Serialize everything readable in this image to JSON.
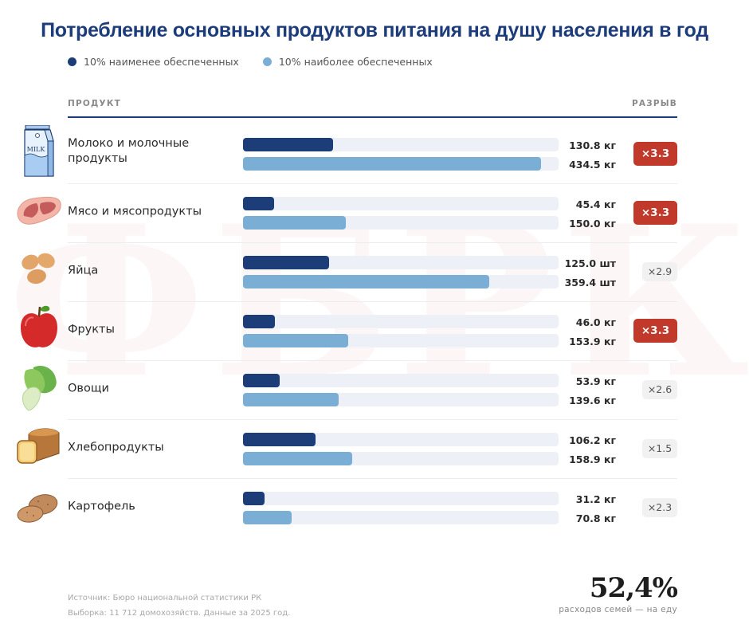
{
  "watermark": "ФБРК",
  "title": "Потребление основных продуктов питания на душу населения в год",
  "legend": [
    {
      "label": "10% наименее обеспеченных",
      "color": "#1d3d79"
    },
    {
      "label": "10% наиболее обеспеченных",
      "color": "#7aaed4"
    }
  ],
  "table_header": {
    "product": "ПРОДУКТ",
    "gap": "РАЗРЫВ"
  },
  "colors": {
    "low": "#1d3d79",
    "high": "#7aaed4",
    "badge_hot": "#c0392b",
    "badge_norm": "#f1f1f2",
    "title": "#1c3d7a"
  },
  "chart_data": {
    "type": "bar",
    "orientation": "horizontal",
    "title": "Потребление основных продуктов питания на душу населения в год",
    "xlim": [
      0,
      460
    ],
    "categories": [
      "Молоко и молочные продукты",
      "Мясо и мясопродукты",
      "Яйца",
      "Фрукты",
      "Овощи",
      "Хлебопродукты",
      "Картофель"
    ],
    "series": [
      {
        "name": "10% наименее обеспеченных",
        "values": [
          130.8,
          45.4,
          125.0,
          46.0,
          53.9,
          106.2,
          31.2
        ]
      },
      {
        "name": "10% наиболее обеспеченных",
        "values": [
          434.5,
          150.0,
          359.4,
          153.9,
          139.6,
          158.9,
          70.8
        ]
      }
    ],
    "units": [
      "кг",
      "кг",
      "шт",
      "кг",
      "кг",
      "кг",
      "кг"
    ],
    "rows": [
      {
        "icon": "milk-carton-icon",
        "name": "Молоко и молочные продукты",
        "low": 130.8,
        "high": 434.5,
        "low_label": "130.8 кг",
        "high_label": "434.5 кг",
        "gap": "×3.3",
        "highlight": true
      },
      {
        "icon": "meat-steak-icon",
        "name": "Мясо и мясопродукты",
        "low": 45.4,
        "high": 150.0,
        "low_label": "45.4 кг",
        "high_label": "150.0 кг",
        "gap": "×3.3",
        "highlight": true
      },
      {
        "icon": "eggs-icon",
        "name": "Яйца",
        "low": 125.0,
        "high": 359.4,
        "low_label": "125.0 шт",
        "high_label": "359.4 шт",
        "gap": "×2.9",
        "highlight": false
      },
      {
        "icon": "apple-icon",
        "name": "Фрукты",
        "low": 46.0,
        "high": 153.9,
        "low_label": "46.0 кг",
        "high_label": "153.9 кг",
        "gap": "×3.3",
        "highlight": true
      },
      {
        "icon": "cabbage-icon",
        "name": "Овощи",
        "low": 53.9,
        "high": 139.6,
        "low_label": "53.9 кг",
        "high_label": "139.6 кг",
        "gap": "×2.6",
        "highlight": false
      },
      {
        "icon": "bread-icon",
        "name": "Хлебопродукты",
        "low": 106.2,
        "high": 158.9,
        "low_label": "106.2 кг",
        "high_label": "158.9 кг",
        "gap": "×1.5",
        "highlight": false
      },
      {
        "icon": "potato-icon",
        "name": "Картофель",
        "low": 31.2,
        "high": 70.8,
        "low_label": "31.2 кг",
        "high_label": "70.8 кг",
        "gap": "×2.3",
        "highlight": false
      }
    ]
  },
  "footer": {
    "source": "Источник: Бюро национальной статистики РК",
    "sample": "Выборка: 11 712 домохозяйств. Данные за 2025 год.",
    "stat_value": "52,4%",
    "stat_caption": "расходов семей — на еду"
  }
}
